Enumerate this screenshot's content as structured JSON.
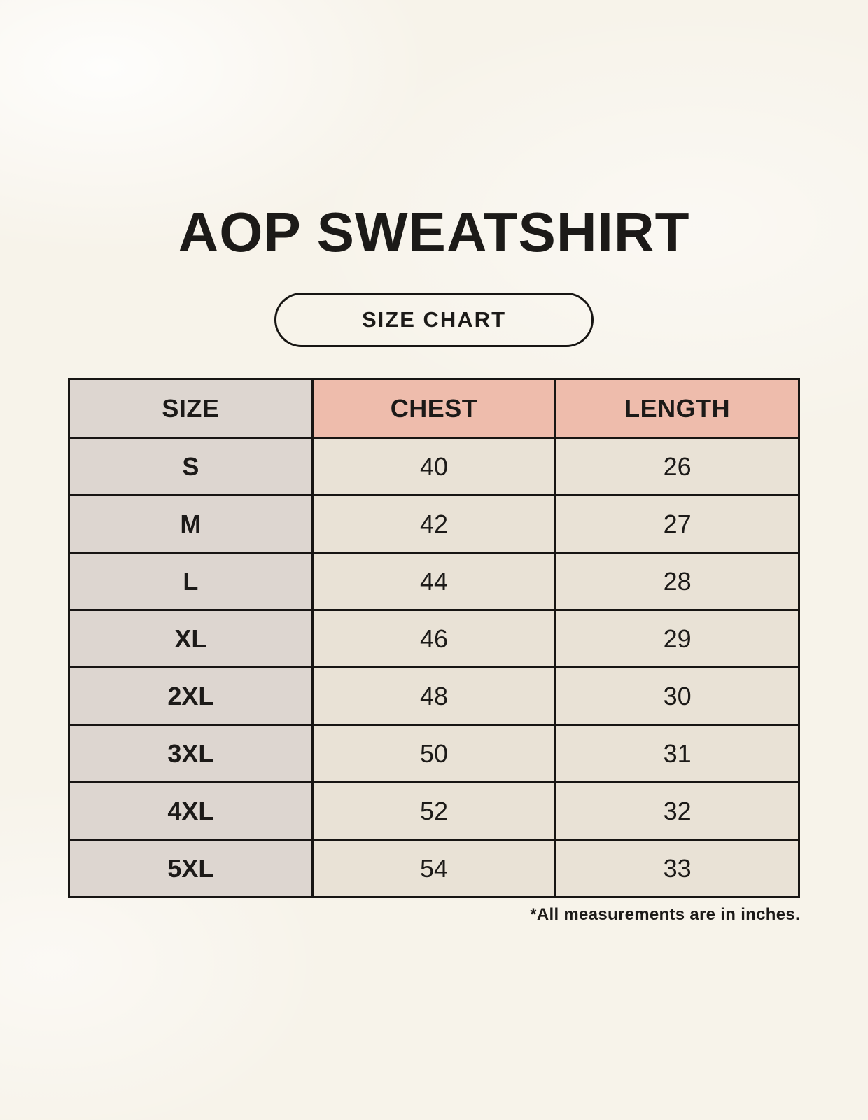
{
  "header": {
    "title": "AOP SWEATSHIRT",
    "badge_label": "SIZE CHART"
  },
  "chart_data": {
    "type": "table",
    "title": "AOP SWEATSHIRT",
    "subtitle": "SIZE CHART",
    "columns": [
      "SIZE",
      "CHEST",
      "LENGTH"
    ],
    "rows": [
      [
        "S",
        "40",
        "26"
      ],
      [
        "M",
        "42",
        "27"
      ],
      [
        "L",
        "44",
        "28"
      ],
      [
        "XL",
        "46",
        "29"
      ],
      [
        "2XL",
        "48",
        "30"
      ],
      [
        "3XL",
        "50",
        "31"
      ],
      [
        "4XL",
        "52",
        "32"
      ],
      [
        "5XL",
        "54",
        "33"
      ]
    ],
    "units": "inches"
  },
  "footnote": {
    "text": "*All measurements are in inches."
  },
  "colors": {
    "page_bg": "#f7f3ea",
    "size_col_bg": "#ddd6d0",
    "accent_bg": "#eebcac",
    "cell_bg": "#e9e2d6",
    "border": "#171513",
    "text": "#1c1a18"
  }
}
